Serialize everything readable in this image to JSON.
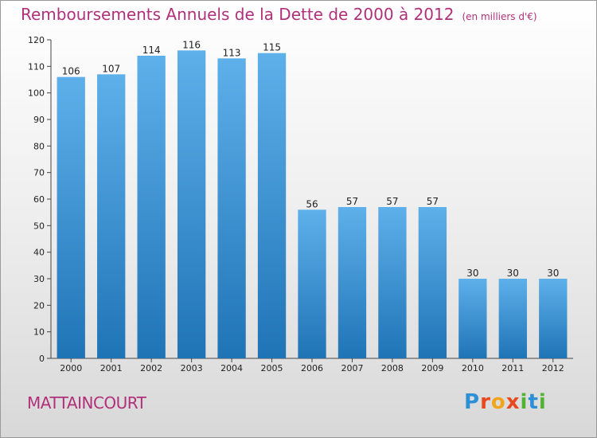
{
  "header": {
    "title": "Remboursements Annuels de la Dette de 2000 à 2012",
    "unit": "(en milliers d'€)"
  },
  "footer": {
    "commune": "MATTAINCOURT",
    "logo": "Proxiti"
  },
  "colors": {
    "title": "#b0307a",
    "bar_top": "#5eb0ea",
    "bar_bottom": "#1f74b6"
  },
  "chart_data": {
    "type": "bar",
    "title": "Remboursements Annuels de la Dette de 2000 à 2012",
    "subtitle": "(en milliers d'€)",
    "xlabel": "",
    "ylabel": "",
    "categories": [
      "2000",
      "2001",
      "2002",
      "2003",
      "2004",
      "2005",
      "2006",
      "2007",
      "2008",
      "2009",
      "2010",
      "2011",
      "2012"
    ],
    "values": [
      106,
      107,
      114,
      116,
      113,
      115,
      56,
      57,
      57,
      57,
      30,
      30,
      30
    ],
    "ylim": [
      0,
      120
    ],
    "yticks": [
      0,
      10,
      20,
      30,
      40,
      50,
      60,
      70,
      80,
      90,
      100,
      110,
      120
    ],
    "grid": false,
    "legend": "none"
  }
}
